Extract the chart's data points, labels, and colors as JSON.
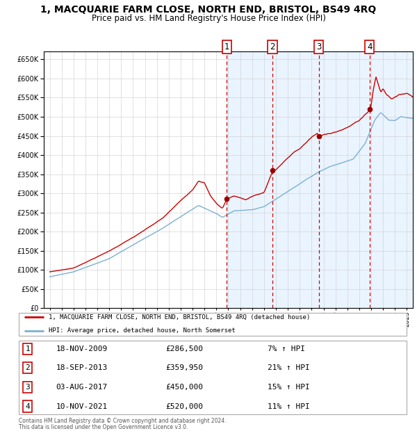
{
  "title": "1, MACQUARIE FARM CLOSE, NORTH END, BRISTOL, BS49 4RQ",
  "subtitle": "Price paid vs. HM Land Registry's House Price Index (HPI)",
  "title_fontsize": 10,
  "subtitle_fontsize": 8.5,
  "ylim": [
    0,
    670000
  ],
  "yticks": [
    0,
    50000,
    100000,
    150000,
    200000,
    250000,
    300000,
    350000,
    400000,
    450000,
    500000,
    550000,
    600000,
    650000
  ],
  "xlim_start": 1994.5,
  "xlim_end": 2025.5,
  "chart_bg": "#ffffff",
  "grid_color": "#cccccc",
  "sale_color": "#cc0000",
  "hpi_color": "#7ab0d4",
  "shade_color": "#ddeeff",
  "dashed_color": "#cc0000",
  "marker_color": "#990000",
  "purchases": [
    {
      "num": 1,
      "date_str": "18-NOV-2009",
      "date_x": 2009.88,
      "price": 286500,
      "pct": "7%",
      "dir": "↑"
    },
    {
      "num": 2,
      "date_str": "18-SEP-2013",
      "date_x": 2013.71,
      "price": 359950,
      "pct": "21%",
      "dir": "↑"
    },
    {
      "num": 3,
      "date_str": "03-AUG-2017",
      "date_x": 2017.59,
      "price": 450000,
      "pct": "15%",
      "dir": "↑"
    },
    {
      "num": 4,
      "date_str": "10-NOV-2021",
      "date_x": 2021.86,
      "price": 520000,
      "pct": "11%",
      "dir": "↑"
    }
  ],
  "legend_label_red": "1, MACQUARIE FARM CLOSE, NORTH END, BRISTOL, BS49 4RQ (detached house)",
  "legend_label_blue": "HPI: Average price, detached house, North Somerset",
  "footer_line1": "Contains HM Land Registry data © Crown copyright and database right 2024.",
  "footer_line2": "This data is licensed under the Open Government Licence v3.0."
}
